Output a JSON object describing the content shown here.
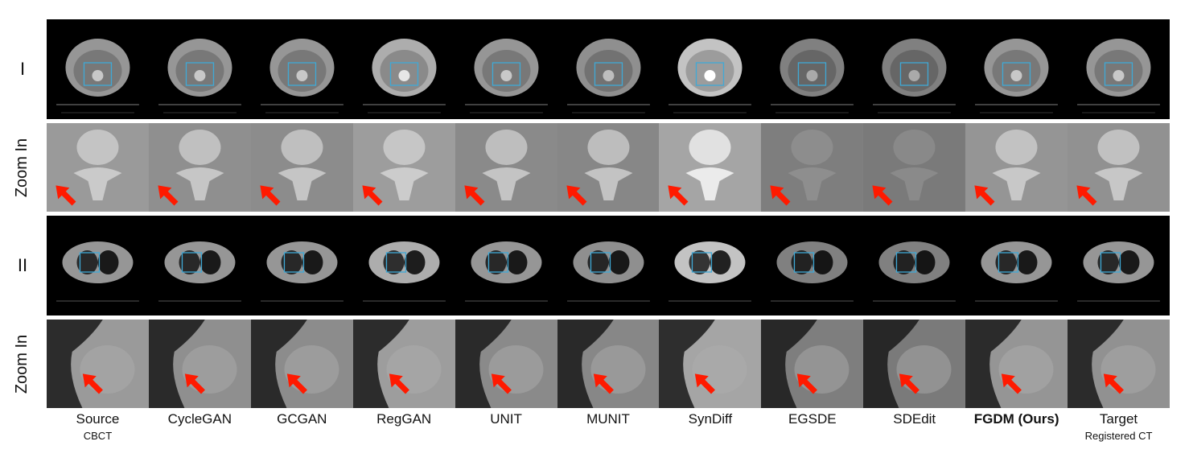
{
  "rows": [
    {
      "label": "I",
      "kind": "ct",
      "case": "I"
    },
    {
      "label": "Zoom In",
      "kind": "zoom",
      "case": "I"
    },
    {
      "label": "II",
      "kind": "ct",
      "case": "II"
    },
    {
      "label": "Zoom In",
      "kind": "zoom",
      "case": "II"
    }
  ],
  "columns": [
    {
      "name": "Source",
      "sub": "CBCT"
    },
    {
      "name": "CycleGAN",
      "sub": ""
    },
    {
      "name": "GCGAN",
      "sub": ""
    },
    {
      "name": "RegGAN",
      "sub": ""
    },
    {
      "name": "UNIT",
      "sub": ""
    },
    {
      "name": "MUNIT",
      "sub": ""
    },
    {
      "name": "SynDiff",
      "sub": ""
    },
    {
      "name": "EGSDE",
      "sub": ""
    },
    {
      "name": "SDEdit",
      "sub": ""
    },
    {
      "name": "FGDM (Ours)",
      "sub": "",
      "bold": true
    },
    {
      "name": "Target",
      "sub": "Registered CT"
    }
  ],
  "colors": {
    "roi_box": "#3fa9d6",
    "arrow": "#ff1a00",
    "ct_background": "#000000"
  },
  "icons": {
    "arrow": "red-arrow-icon",
    "roi": "roi-box-icon"
  }
}
